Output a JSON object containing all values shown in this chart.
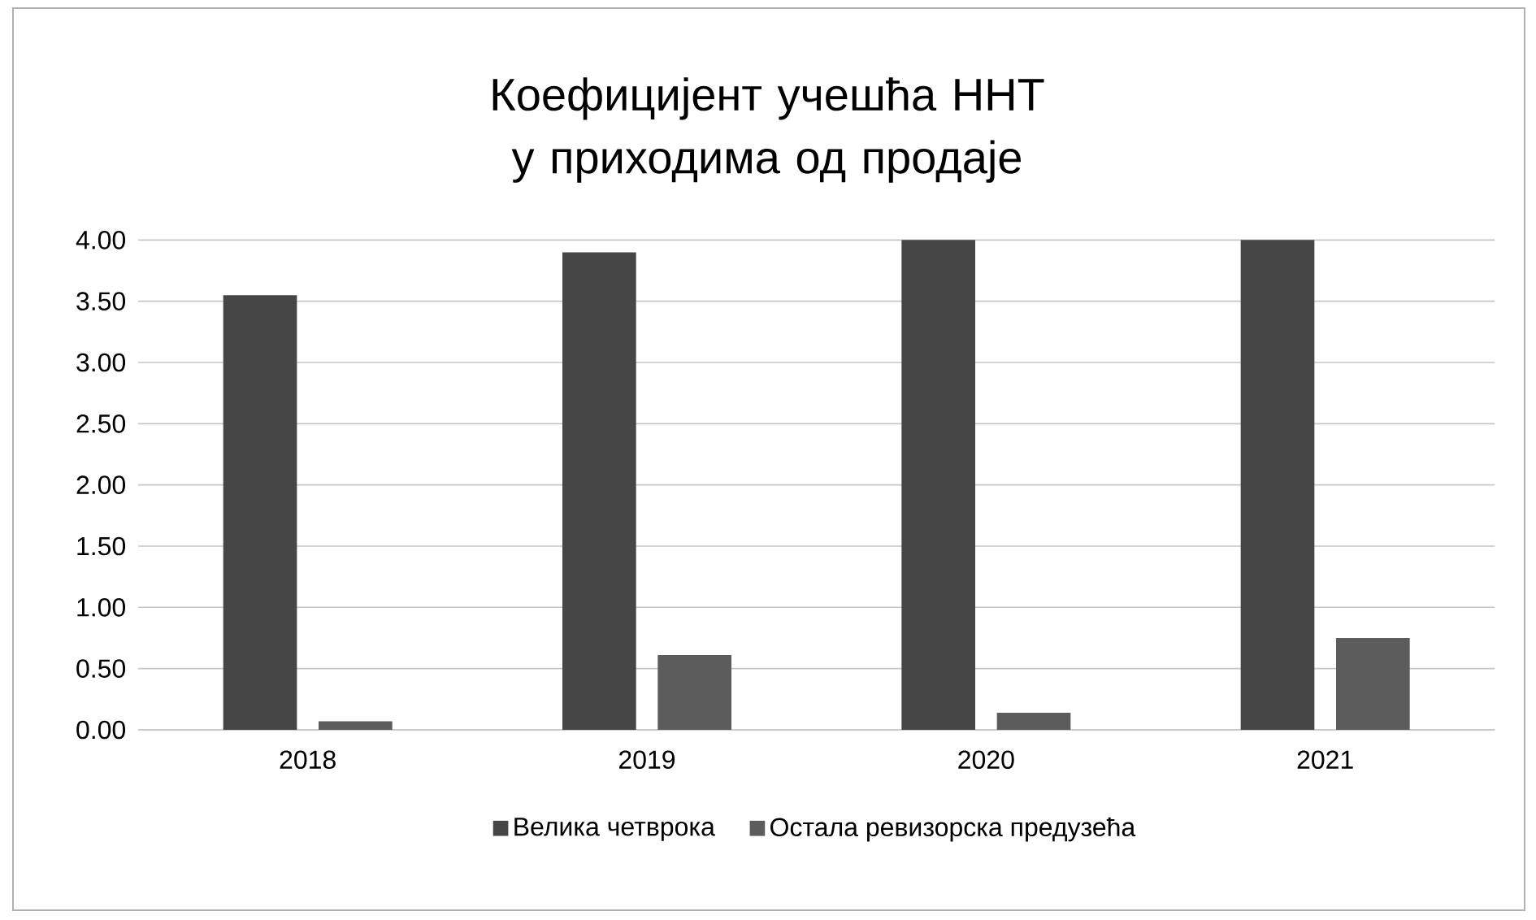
{
  "chart_data": {
    "type": "bar",
    "title": "Коефицијент учешћа ННТ у приходима од продаје",
    "categories": [
      "2018",
      "2019",
      "2020",
      "2021"
    ],
    "series": [
      {
        "name": "Велика четврока",
        "color": "#464646",
        "values": [
          3.55,
          3.9,
          4.0,
          4.0
        ]
      },
      {
        "name": "Остала ревизорска предузећа",
        "color": "#5c5c5c",
        "values": [
          0.07,
          0.61,
          0.14,
          0.75
        ]
      }
    ],
    "ylim": [
      0,
      4
    ],
    "yticks": [
      {
        "value": 0,
        "label": "0.00"
      },
      {
        "value": 0.5,
        "label": "0.50"
      },
      {
        "value": 1,
        "label": "1.00"
      },
      {
        "value": 1.5,
        "label": "1.50"
      },
      {
        "value": 2,
        "label": "2.00"
      },
      {
        "value": 2.5,
        "label": "2.50"
      },
      {
        "value": 3,
        "label": "3.00"
      },
      {
        "value": 3.5,
        "label": "3.50"
      },
      {
        "value": 4,
        "label": "4.00"
      }
    ],
    "grid": "y",
    "legend": "bottom"
  }
}
